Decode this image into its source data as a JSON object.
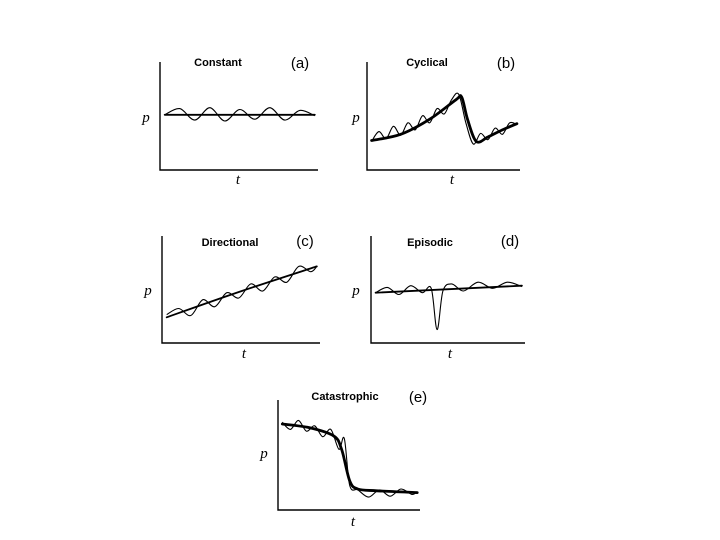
{
  "chart_data": [
    {
      "type": "line",
      "panel": "(a)",
      "title": "Constant",
      "xlabel": "t",
      "ylabel": "p",
      "xlim": [
        0,
        1
      ],
      "ylim": [
        0,
        1
      ],
      "series": [
        {
          "style": "trend",
          "x": [
            0,
            1
          ],
          "values": [
            0.55,
            0.55
          ]
        },
        {
          "style": "noisy",
          "x": [
            0,
            0.1,
            0.2,
            0.3,
            0.4,
            0.5,
            0.6,
            0.7,
            0.8,
            0.9,
            1.0
          ],
          "values": [
            0.55,
            0.62,
            0.49,
            0.63,
            0.48,
            0.61,
            0.5,
            0.63,
            0.49,
            0.6,
            0.54
          ]
        }
      ]
    },
    {
      "type": "line",
      "panel": "(b)",
      "title": "Cyclical",
      "xlabel": "t",
      "ylabel": "p",
      "xlim": [
        0,
        1
      ],
      "ylim": [
        0,
        1
      ],
      "series": [
        {
          "style": "trend",
          "x": [
            0,
            0.2,
            0.4,
            0.58,
            0.62,
            0.66,
            0.72,
            0.8,
            0.9,
            1.0
          ],
          "values": [
            0.26,
            0.33,
            0.5,
            0.72,
            0.75,
            0.5,
            0.25,
            0.3,
            0.38,
            0.45
          ]
        },
        {
          "style": "noisy",
          "x": [
            0,
            0.05,
            0.1,
            0.15,
            0.2,
            0.25,
            0.3,
            0.35,
            0.4,
            0.45,
            0.5,
            0.55,
            0.6,
            0.65,
            0.7,
            0.75,
            0.8,
            0.85,
            0.9,
            0.95,
            1.0
          ],
          "values": [
            0.25,
            0.36,
            0.28,
            0.42,
            0.32,
            0.46,
            0.38,
            0.54,
            0.46,
            0.62,
            0.56,
            0.72,
            0.78,
            0.45,
            0.22,
            0.34,
            0.27,
            0.4,
            0.33,
            0.46,
            0.44
          ]
        }
      ]
    },
    {
      "type": "line",
      "panel": "(c)",
      "title": "Directional",
      "xlabel": "t",
      "ylabel": "p",
      "xlim": [
        0,
        1
      ],
      "ylim": [
        0,
        1
      ],
      "series": [
        {
          "style": "trend",
          "x": [
            0,
            0.5,
            1
          ],
          "values": [
            0.22,
            0.52,
            0.8
          ]
        },
        {
          "style": "noisy",
          "x": [
            0,
            0.08,
            0.16,
            0.24,
            0.32,
            0.4,
            0.48,
            0.56,
            0.64,
            0.72,
            0.8,
            0.88,
            0.96,
            1.0
          ],
          "values": [
            0.25,
            0.32,
            0.24,
            0.42,
            0.34,
            0.5,
            0.44,
            0.6,
            0.52,
            0.68,
            0.62,
            0.8,
            0.74,
            0.8
          ]
        }
      ]
    },
    {
      "type": "line",
      "panel": "(d)",
      "title": "Episodic",
      "xlabel": "t",
      "ylabel": "p",
      "xlim": [
        0,
        1
      ],
      "ylim": [
        0,
        1
      ],
      "series": [
        {
          "style": "trend",
          "x": [
            0,
            1
          ],
          "values": [
            0.5,
            0.58
          ]
        },
        {
          "style": "noisy",
          "x": [
            0,
            0.08,
            0.16,
            0.24,
            0.32,
            0.38,
            0.42,
            0.46,
            0.52,
            0.6,
            0.7,
            0.8,
            0.9,
            1.0
          ],
          "values": [
            0.5,
            0.56,
            0.48,
            0.58,
            0.5,
            0.55,
            0.08,
            0.52,
            0.6,
            0.52,
            0.62,
            0.55,
            0.62,
            0.57
          ]
        }
      ]
    },
    {
      "type": "line",
      "panel": "(e)",
      "title": "Catastrophic",
      "xlabel": "t",
      "ylabel": "p",
      "xlim": [
        0,
        1
      ],
      "ylim": [
        0,
        1
      ],
      "series": [
        {
          "style": "trend",
          "x": [
            0,
            0.2,
            0.38,
            0.44,
            0.5,
            0.56,
            0.7,
            1.0
          ],
          "values": [
            0.88,
            0.84,
            0.75,
            0.6,
            0.25,
            0.16,
            0.14,
            0.12
          ]
        },
        {
          "style": "noisy",
          "x": [
            0,
            0.06,
            0.12,
            0.18,
            0.24,
            0.3,
            0.36,
            0.42,
            0.46,
            0.5,
            0.56,
            0.64,
            0.72,
            0.8,
            0.88,
            0.96,
            1.0
          ],
          "values": [
            0.9,
            0.82,
            0.92,
            0.8,
            0.86,
            0.74,
            0.82,
            0.6,
            0.72,
            0.2,
            0.15,
            0.07,
            0.15,
            0.08,
            0.16,
            0.1,
            0.13
          ]
        }
      ]
    }
  ]
}
